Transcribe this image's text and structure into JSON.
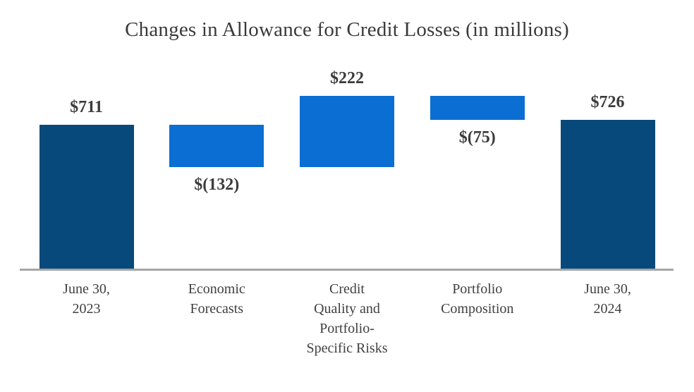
{
  "title": "Changes in Allowance for Credit Losses (in millions)",
  "colors": {
    "total_bar": "#08497c",
    "delta_bar": "#0a6ed2",
    "axis_line": "#a6a6a6",
    "title_text": "#3a3a3a",
    "label_text": "#3b3b3b"
  },
  "chart_data": {
    "type": "bar",
    "subtype": "waterfall",
    "title": "Changes in Allowance for Credit Losses (in millions)",
    "xlabel": "",
    "ylabel": "",
    "ylim": [
      260,
      810
    ],
    "grid": false,
    "legend": false,
    "categories": [
      "June 30, 2023",
      "Economic Forecasts",
      "Credit Quality and Portfolio-Specific Risks",
      "Portfolio Composition",
      "June 30, 2024"
    ],
    "bars": [
      {
        "category_lines": [
          "June 30,",
          "2023"
        ],
        "role": "total",
        "value": 711,
        "data_label": "$711"
      },
      {
        "category_lines": [
          "Economic",
          "Forecasts"
        ],
        "role": "delta",
        "value": -132,
        "data_label": "$(132)"
      },
      {
        "category_lines": [
          "Credit",
          "Quality and",
          "Portfolio-",
          "Specific Risks"
        ],
        "role": "delta",
        "value": 222,
        "data_label": "$222"
      },
      {
        "category_lines": [
          "Portfolio",
          "Composition"
        ],
        "role": "delta",
        "value": -75,
        "data_label": "$(75)"
      },
      {
        "category_lines": [
          "June 30,",
          "2024"
        ],
        "role": "total",
        "value": 726,
        "data_label": "$726"
      }
    ]
  }
}
